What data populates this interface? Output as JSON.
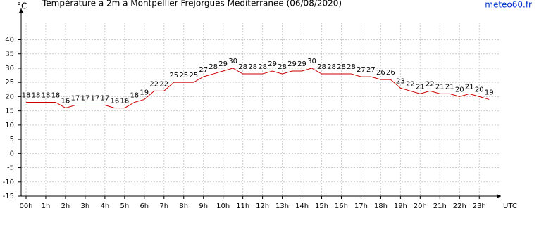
{
  "chart_data": {
    "type": "line",
    "title": "Température à 2m à Montpellier Frejorgues Mediterranee (06/08/2020)",
    "y_label": "°C",
    "x_unit": "UTC",
    "source": "meteo60.fr",
    "x": [
      0,
      0.5,
      1,
      1.5,
      2,
      2.5,
      3,
      3.5,
      4,
      4.5,
      5,
      5.5,
      6,
      6.5,
      7,
      7.5,
      8,
      8.5,
      9,
      9.5,
      10,
      10.5,
      11,
      11.5,
      12,
      12.5,
      13,
      13.5,
      14,
      14.5,
      15,
      15.5,
      16,
      16.5,
      17,
      17.5,
      18,
      18.5,
      19,
      19.5,
      20,
      20.5,
      21,
      21.5,
      22,
      22.5,
      23,
      23.5
    ],
    "series": [
      {
        "name": "Température",
        "color": "#cc0000",
        "values": [
          18,
          18,
          18,
          18,
          16,
          17,
          17,
          17,
          17,
          16,
          16,
          18,
          19,
          22,
          22,
          25,
          25,
          25,
          27,
          28,
          29,
          30,
          28,
          28,
          28,
          29,
          28,
          29,
          29,
          30,
          28,
          28,
          28,
          28,
          27,
          27,
          26,
          26,
          23,
          22,
          21,
          22,
          21,
          21,
          20,
          21,
          20,
          19
        ]
      }
    ],
    "xlim": [
      -0.25,
      24.1
    ],
    "xticks": [
      {
        "value": 0,
        "label": "00h"
      },
      {
        "value": 1,
        "label": "1h"
      },
      {
        "value": 2,
        "label": "2h"
      },
      {
        "value": 3,
        "label": "3h"
      },
      {
        "value": 4,
        "label": "4h"
      },
      {
        "value": 5,
        "label": "5h"
      },
      {
        "value": 6,
        "label": "6h"
      },
      {
        "value": 7,
        "label": "7h"
      },
      {
        "value": 8,
        "label": "8h"
      },
      {
        "value": 9,
        "label": "9h"
      },
      {
        "value": 10,
        "label": "10h"
      },
      {
        "value": 11,
        "label": "11h"
      },
      {
        "value": 12,
        "label": "12h"
      },
      {
        "value": 13,
        "label": "13h"
      },
      {
        "value": 14,
        "label": "14h"
      },
      {
        "value": 15,
        "label": "15h"
      },
      {
        "value": 16,
        "label": "16h"
      },
      {
        "value": 17,
        "label": "17h"
      },
      {
        "value": 18,
        "label": "18h"
      },
      {
        "value": 19,
        "label": "19h"
      },
      {
        "value": 20,
        "label": "20h"
      },
      {
        "value": 21,
        "label": "21h"
      },
      {
        "value": 22,
        "label": "22h"
      },
      {
        "value": 23,
        "label": "23h"
      }
    ],
    "ylim": [
      -15,
      51
    ],
    "yticks": [
      -15,
      -10,
      -5,
      0,
      5,
      10,
      15,
      20,
      25,
      30,
      35,
      40
    ],
    "grid": true,
    "data_labels": true
  }
}
